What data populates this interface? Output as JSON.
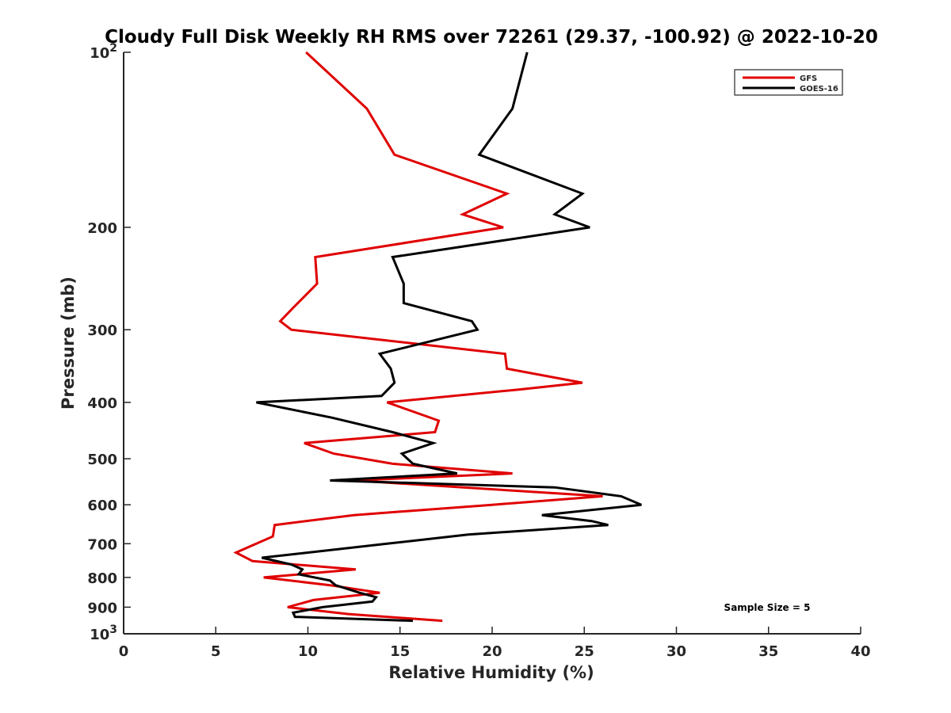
{
  "chart_data": {
    "type": "line",
    "title": "Cloudy Full Disk Weekly RH RMS over 72261 (29.37, -100.92) @ 2022-10-20",
    "xlabel": "Relative Humidity (%)",
    "ylabel": "Pressure (mb)",
    "xlim": [
      0,
      40
    ],
    "ylim": [
      1000,
      100
    ],
    "y_scale": "log",
    "x_ticks": [
      0,
      5,
      10,
      15,
      20,
      25,
      30,
      35,
      40
    ],
    "x_tick_labels": [
      "0",
      "5",
      "10",
      "15",
      "20",
      "25",
      "30",
      "35",
      "40"
    ],
    "y_ticks": [
      {
        "value": 100,
        "base": "10",
        "exp": "2"
      },
      {
        "value": 200,
        "label": "200"
      },
      {
        "value": 300,
        "label": "300"
      },
      {
        "value": 400,
        "label": "400"
      },
      {
        "value": 500,
        "label": "500"
      },
      {
        "value": 600,
        "label": "600"
      },
      {
        "value": 700,
        "label": "700"
      },
      {
        "value": 800,
        "label": "800"
      },
      {
        "value": 900,
        "label": "900"
      },
      {
        "value": 1000,
        "base": "10",
        "exp": "3"
      }
    ],
    "grid": false,
    "legend_position": "top-right",
    "annotation": "Sample Size = 5",
    "series": [
      {
        "name": "GFS",
        "color": "#e00000",
        "points": [
          [
            9.9,
            100
          ],
          [
            13.2,
            125
          ],
          [
            14.7,
            150
          ],
          [
            20.8,
            175
          ],
          [
            18.4,
            190
          ],
          [
            20.6,
            200
          ],
          [
            10.4,
            225
          ],
          [
            10.5,
            250
          ],
          [
            9.2,
            275
          ],
          [
            8.5,
            290
          ],
          [
            9.1,
            300
          ],
          [
            20.7,
            330
          ],
          [
            20.8,
            350
          ],
          [
            24.9,
            370
          ],
          [
            21.5,
            380
          ],
          [
            14.3,
            400
          ],
          [
            17.1,
            430
          ],
          [
            16.9,
            450
          ],
          [
            9.8,
            470
          ],
          [
            11.4,
            490
          ],
          [
            14.6,
            510
          ],
          [
            21.1,
            530
          ],
          [
            12.5,
            545
          ],
          [
            26.0,
            580
          ],
          [
            20.0,
            600
          ],
          [
            12.5,
            625
          ],
          [
            8.2,
            650
          ],
          [
            8.1,
            680
          ],
          [
            7.2,
            700
          ],
          [
            6.1,
            725
          ],
          [
            7.0,
            750
          ],
          [
            12.6,
            775
          ],
          [
            7.6,
            800
          ],
          [
            11.2,
            825
          ],
          [
            13.9,
            850
          ],
          [
            10.3,
            875
          ],
          [
            8.9,
            900
          ],
          [
            12.2,
            925
          ],
          [
            17.3,
            950
          ]
        ]
      },
      {
        "name": "GOES-16",
        "color": "#000000",
        "points": [
          [
            21.9,
            100
          ],
          [
            21.1,
            125
          ],
          [
            19.3,
            150
          ],
          [
            24.9,
            175
          ],
          [
            23.4,
            190
          ],
          [
            25.3,
            200
          ],
          [
            14.6,
            225
          ],
          [
            15.2,
            250
          ],
          [
            15.2,
            270
          ],
          [
            18.9,
            290
          ],
          [
            19.2,
            300
          ],
          [
            13.9,
            330
          ],
          [
            14.5,
            350
          ],
          [
            14.7,
            370
          ],
          [
            14.0,
            390
          ],
          [
            7.2,
            400
          ],
          [
            11.3,
            425
          ],
          [
            14.6,
            450
          ],
          [
            16.8,
            470
          ],
          [
            15.1,
            490
          ],
          [
            15.7,
            510
          ],
          [
            18.1,
            530
          ],
          [
            11.2,
            545
          ],
          [
            23.4,
            560
          ],
          [
            27.0,
            580
          ],
          [
            28.1,
            600
          ],
          [
            22.7,
            625
          ],
          [
            25.4,
            640
          ],
          [
            26.3,
            650
          ],
          [
            18.7,
            675
          ],
          [
            14.3,
            700
          ],
          [
            7.5,
            740
          ],
          [
            9.1,
            760
          ],
          [
            9.7,
            775
          ],
          [
            9.5,
            790
          ],
          [
            11.2,
            810
          ],
          [
            11.5,
            825
          ],
          [
            12.8,
            850
          ],
          [
            13.7,
            865
          ],
          [
            13.5,
            880
          ],
          [
            10.8,
            900
          ],
          [
            9.2,
            920
          ],
          [
            9.3,
            935
          ],
          [
            15.7,
            950
          ]
        ]
      }
    ]
  }
}
